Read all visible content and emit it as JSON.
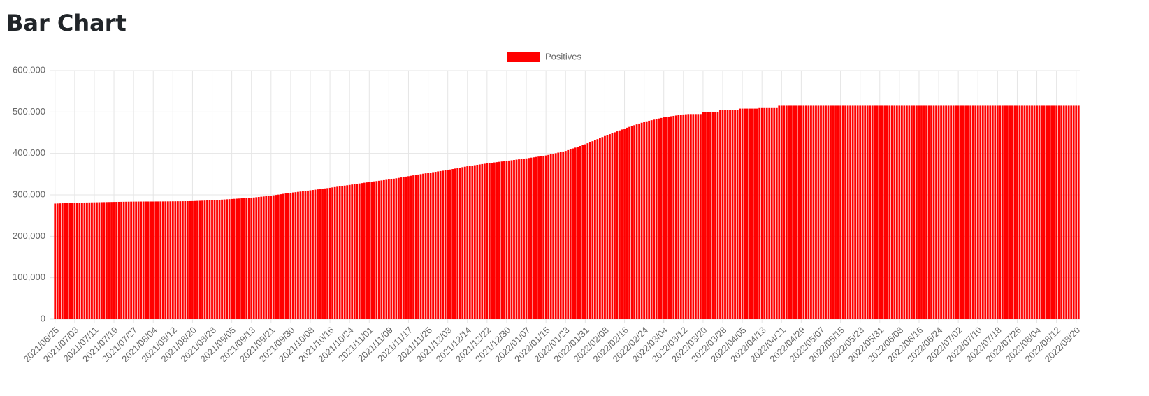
{
  "chart_data": {
    "type": "bar",
    "title": "Bar Chart",
    "categories": [
      "2021/06/25",
      null,
      null,
      null,
      null,
      null,
      null,
      null,
      "2021/07/03",
      null,
      null,
      null,
      null,
      null,
      null,
      null,
      "2021/07/11",
      null,
      null,
      null,
      null,
      null,
      null,
      null,
      "2021/07/19",
      null,
      null,
      null,
      null,
      null,
      null,
      null,
      "2021/07/27",
      null,
      null,
      null,
      null,
      null,
      null,
      null,
      "2021/08/04",
      null,
      null,
      null,
      null,
      null,
      null,
      null,
      "2021/08/12",
      null,
      null,
      null,
      null,
      null,
      null,
      null,
      "2021/08/20",
      null,
      null,
      null,
      null,
      null,
      null,
      null,
      "2021/08/28",
      null,
      null,
      null,
      null,
      null,
      null,
      null,
      "2021/09/05",
      null,
      null,
      null,
      null,
      null,
      null,
      null,
      "2021/09/13",
      null,
      null,
      null,
      null,
      null,
      null,
      null,
      "2021/09/21",
      null,
      null,
      null,
      null,
      null,
      null,
      null,
      "2021/09/30",
      null,
      null,
      null,
      null,
      null,
      null,
      null,
      "2021/10/08",
      null,
      null,
      null,
      null,
      null,
      null,
      null,
      "2021/10/16",
      null,
      null,
      null,
      null,
      null,
      null,
      null,
      "2021/10/24",
      null,
      null,
      null,
      null,
      null,
      null,
      null,
      "2021/11/01",
      null,
      null,
      null,
      null,
      null,
      null,
      null,
      "2021/11/09",
      null,
      null,
      null,
      null,
      null,
      null,
      null,
      "2021/11/17",
      null,
      null,
      null,
      null,
      null,
      null,
      null,
      "2021/11/25",
      null,
      null,
      null,
      null,
      null,
      null,
      null,
      "2021/12/03",
      null,
      null,
      null,
      null,
      null,
      null,
      null,
      "2021/12/14",
      null,
      null,
      null,
      null,
      null,
      null,
      null,
      "2021/12/22",
      null,
      null,
      null,
      null,
      null,
      null,
      null,
      "2021/12/30",
      null,
      null,
      null,
      null,
      null,
      null,
      null,
      "2022/01/07",
      null,
      null,
      null,
      null,
      null,
      null,
      null,
      "2022/01/15",
      null,
      null,
      null,
      null,
      null,
      null,
      null,
      "2022/01/23",
      null,
      null,
      null,
      null,
      null,
      null,
      null,
      "2022/01/31",
      null,
      null,
      null,
      null,
      null,
      null,
      null,
      "2022/02/08",
      null,
      null,
      null,
      null,
      null,
      null,
      null,
      "2022/02/16",
      null,
      null,
      null,
      null,
      null,
      null,
      null,
      "2022/02/24",
      null,
      null,
      null,
      null,
      null,
      null,
      null,
      "2022/03/04",
      null,
      null,
      null,
      null,
      null,
      null,
      null,
      "2022/03/12",
      null,
      null,
      null,
      null,
      null,
      null,
      null,
      "2022/03/20",
      null,
      null,
      null,
      null,
      null,
      null,
      null,
      "2022/03/28",
      null,
      null,
      null,
      null,
      null,
      null,
      null,
      "2022/04/05",
      null,
      null,
      null,
      null,
      null,
      null,
      null,
      "2022/04/13",
      null,
      null,
      null,
      null,
      null,
      null,
      null,
      "2022/04/21",
      null,
      null,
      null,
      null,
      null,
      null,
      null,
      "2022/04/29",
      null,
      null,
      null,
      null,
      null,
      null,
      null,
      "2022/05/07",
      null,
      null,
      null,
      null,
      null,
      null,
      null,
      "2022/05/15",
      null,
      null,
      null,
      null,
      null,
      null,
      null,
      "2022/05/23",
      null,
      null,
      null,
      null,
      null,
      null,
      null,
      "2022/05/31",
      null,
      null,
      null,
      null,
      null,
      null,
      null,
      "2022/06/08",
      null,
      null,
      null,
      null,
      null,
      null,
      null,
      "2022/06/16",
      null,
      null,
      null,
      null,
      null,
      null,
      null,
      "2022/06/24",
      null,
      null,
      null,
      null,
      null,
      null,
      null,
      "2022/07/02",
      null,
      null,
      null,
      null,
      null,
      null,
      null,
      "2022/07/10",
      null,
      null,
      null,
      null,
      null,
      null,
      null,
      "2022/07/18",
      null,
      null,
      null,
      null,
      null,
      null,
      null,
      "2022/07/26",
      null,
      null,
      null,
      null,
      null,
      null,
      null,
      "2022/08/04",
      null,
      null,
      null,
      null,
      null,
      null,
      null,
      "2022/08/12",
      null,
      null,
      null,
      null,
      null,
      null,
      null,
      "2022/08/20",
      null
    ],
    "series": [
      {
        "name": "Positives",
        "color": "#ff0000",
        "values": [
          279000,
          279250,
          279500,
          279750,
          280000,
          280250,
          280500,
          280750,
          281000,
          281125,
          281250,
          281375,
          281500,
          281625,
          281750,
          281875,
          282000,
          282125,
          282250,
          282375,
          282500,
          282625,
          282750,
          282875,
          283000,
          283100,
          283200,
          283300,
          283400,
          283500,
          283600,
          283700,
          283800,
          283800,
          283900,
          283900,
          284000,
          284000,
          284000,
          284000,
          284000,
          284100,
          284100,
          284200,
          284200,
          284300,
          284300,
          284400,
          284500,
          284500,
          284600,
          284600,
          284700,
          284800,
          284800,
          284900,
          285000,
          285250,
          285500,
          285750,
          286000,
          286250,
          286500,
          286750,
          287000,
          287400,
          287800,
          288100,
          288500,
          288900,
          289300,
          289600,
          290000,
          290400,
          290800,
          291100,
          291500,
          291900,
          292300,
          292600,
          293000,
          293600,
          294300,
          294900,
          295500,
          296100,
          296800,
          297400,
          298000,
          298900,
          299800,
          300600,
          301500,
          302400,
          303300,
          304100,
          305000,
          305750,
          306500,
          307250,
          308000,
          308750,
          309500,
          310250,
          311000,
          311750,
          312500,
          313250,
          314000,
          314750,
          315500,
          316250,
          317000,
          317900,
          318800,
          319600,
          320500,
          321400,
          322300,
          323100,
          324000,
          324900,
          325800,
          326600,
          327500,
          328400,
          329300,
          330100,
          331000,
          331750,
          332500,
          333250,
          334000,
          334750,
          335500,
          336250,
          337000,
          338000,
          339000,
          340000,
          341000,
          342000,
          343000,
          344000,
          345000,
          346000,
          347000,
          348000,
          349000,
          350000,
          351000,
          352000,
          353000,
          353900,
          354800,
          355600,
          356500,
          357400,
          358300,
          359100,
          360000,
          361100,
          362300,
          363400,
          364500,
          365600,
          366800,
          367900,
          369000,
          369900,
          370800,
          371600,
          372500,
          373400,
          374300,
          375100,
          376000,
          376750,
          377500,
          378250,
          379000,
          379750,
          380500,
          381250,
          382000,
          382750,
          383500,
          384250,
          385000,
          385750,
          386500,
          387250,
          388000,
          388900,
          389800,
          390600,
          391500,
          392400,
          393300,
          394100,
          395000,
          396400,
          397800,
          399100,
          400500,
          401900,
          403300,
          404600,
          406000,
          408000,
          410000,
          412000,
          414000,
          416000,
          418000,
          420000,
          422000,
          424500,
          427000,
          429500,
          432000,
          434500,
          437000,
          439500,
          442000,
          444250,
          446500,
          448750,
          451000,
          453250,
          455500,
          457750,
          460000,
          462000,
          464000,
          466000,
          468000,
          470000,
          472000,
          474000,
          476000,
          477400,
          478800,
          480100,
          481500,
          482900,
          484300,
          485600,
          487000,
          487900,
          488800,
          489600,
          490500,
          491400,
          492300,
          493100,
          494000,
          494500,
          495000,
          495000,
          495000,
          495000,
          495000,
          495000,
          500000,
          500000,
          500000,
          500000,
          500000,
          500000,
          500000,
          504000,
          504000,
          504000,
          504000,
          504000,
          504000,
          504000,
          504000,
          508000,
          508000,
          508000,
          508000,
          508000,
          508000,
          508000,
          508000,
          511000,
          511000,
          511000,
          511000,
          511000,
          511000,
          511000,
          511000,
          515000,
          515000,
          515000,
          515000,
          515000,
          515000,
          515000,
          515000,
          515000,
          515000,
          515000,
          515000,
          515000,
          515000,
          515000,
          515000,
          515000,
          515000,
          515000,
          515000,
          515000,
          515000,
          515000,
          515000,
          515000,
          515000,
          515000,
          515000,
          515000,
          515000,
          515000,
          515000,
          515000,
          515000,
          515000,
          515000,
          515000,
          515000,
          515000,
          515000,
          515000,
          515000,
          515000,
          515000,
          515000,
          515000,
          515000,
          515000,
          515000,
          515000,
          515000,
          515000,
          515000,
          515000,
          515000,
          515000,
          515000,
          515000,
          515000,
          515000,
          515000,
          515000,
          515000,
          515000,
          515000,
          515000,
          515000,
          515000,
          515000,
          515000,
          515000,
          515000,
          515000,
          515000,
          515000,
          515000,
          515000,
          515000,
          515000,
          515000,
          515000,
          515000,
          515000,
          515000,
          515000,
          515000,
          515000,
          515000,
          515000,
          515000,
          515000,
          515000,
          515000,
          515000,
          515000,
          515000,
          515000,
          515000,
          515000,
          515000,
          515000,
          515000,
          515000,
          515000,
          515000,
          515000,
          515000,
          515000,
          515000,
          515000,
          515000,
          515000,
          515000,
          515000,
          515000,
          515000,
          515000,
          515000,
          515000,
          515000,
          515000,
          515000,
          515000
        ]
      }
    ],
    "ylim": [
      0,
      600000
    ],
    "yticks": [
      0,
      {
        "value": 100000,
        "label": "100,000"
      },
      {
        "value": 200000,
        "label": "200,000"
      },
      {
        "value": 300000,
        "label": "300,000"
      },
      {
        "value": 400000,
        "label": "400,000"
      },
      {
        "value": 500000,
        "label": "500,000"
      },
      {
        "value": 600000,
        "label": "600,000"
      }
    ],
    "grid": true,
    "legend": "top"
  }
}
